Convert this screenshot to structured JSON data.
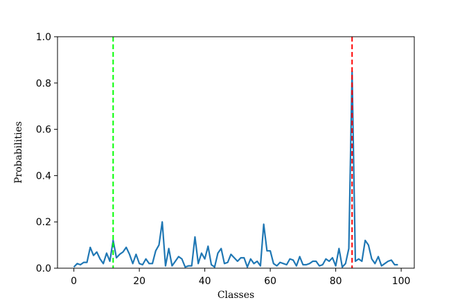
{
  "chart_data": {
    "type": "line",
    "title": "",
    "xlabel": "Classes",
    "ylabel": "Probabilities",
    "xlim": [
      -5,
      104
    ],
    "ylim": [
      0.0,
      1.0
    ],
    "xticks": [
      0,
      20,
      40,
      60,
      80,
      100
    ],
    "xtick_labels": [
      "0",
      "20",
      "40",
      "60",
      "80",
      "100"
    ],
    "yticks": [
      0.0,
      0.2,
      0.4,
      0.6,
      0.8,
      1.0
    ],
    "ytick_labels": [
      "0.0",
      "0.2",
      "0.4",
      "0.6",
      "0.8",
      "1.0"
    ],
    "grid": false,
    "legend": "none",
    "series": [
      {
        "color": "#1f77b4",
        "x": [
          0,
          1,
          2,
          3,
          4,
          5,
          6,
          7,
          8,
          9,
          10,
          11,
          12,
          13,
          14,
          15,
          16,
          17,
          18,
          19,
          20,
          21,
          22,
          23,
          24,
          25,
          26,
          27,
          28,
          29,
          30,
          31,
          32,
          33,
          34,
          35,
          36,
          37,
          38,
          39,
          40,
          41,
          42,
          43,
          44,
          45,
          46,
          47,
          48,
          49,
          50,
          51,
          52,
          53,
          54,
          55,
          56,
          57,
          58,
          59,
          60,
          61,
          62,
          63,
          64,
          65,
          66,
          67,
          68,
          69,
          70,
          71,
          72,
          73,
          74,
          75,
          76,
          77,
          78,
          79,
          80,
          81,
          82,
          83,
          84,
          85,
          86,
          87,
          88,
          89,
          90,
          91,
          92,
          93,
          94,
          95,
          96,
          97,
          98,
          99
        ],
        "y": [
          0.005,
          0.02,
          0.015,
          0.025,
          0.025,
          0.09,
          0.055,
          0.07,
          0.04,
          0.02,
          0.065,
          0.03,
          0.12,
          0.045,
          0.06,
          0.07,
          0.09,
          0.06,
          0.02,
          0.06,
          0.02,
          0.015,
          0.04,
          0.02,
          0.02,
          0.075,
          0.1,
          0.2,
          0.01,
          0.085,
          0.01,
          0.03,
          0.05,
          0.04,
          0.005,
          0.01,
          0.01,
          0.135,
          0.02,
          0.065,
          0.04,
          0.095,
          0.015,
          0.005,
          0.065,
          0.085,
          0.02,
          0.025,
          0.06,
          0.045,
          0.03,
          0.045,
          0.045,
          0.005,
          0.04,
          0.02,
          0.03,
          0.01,
          0.19,
          0.075,
          0.075,
          0.02,
          0.01,
          0.025,
          0.02,
          0.015,
          0.04,
          0.035,
          0.01,
          0.05,
          0.015,
          0.015,
          0.02,
          0.03,
          0.03,
          0.01,
          0.015,
          0.04,
          0.03,
          0.045,
          0.01,
          0.085,
          0.005,
          0.02,
          0.085,
          0.85,
          0.03,
          0.04,
          0.03,
          0.12,
          0.1,
          0.04,
          0.02,
          0.05,
          0.01,
          0.02,
          0.03,
          0.035,
          0.015,
          0.015
        ]
      }
    ],
    "vlines": [
      {
        "x": 12,
        "color": "#00ff00",
        "style": "dashed"
      },
      {
        "x": 85,
        "color": "#ff0000",
        "style": "dashed"
      }
    ]
  }
}
